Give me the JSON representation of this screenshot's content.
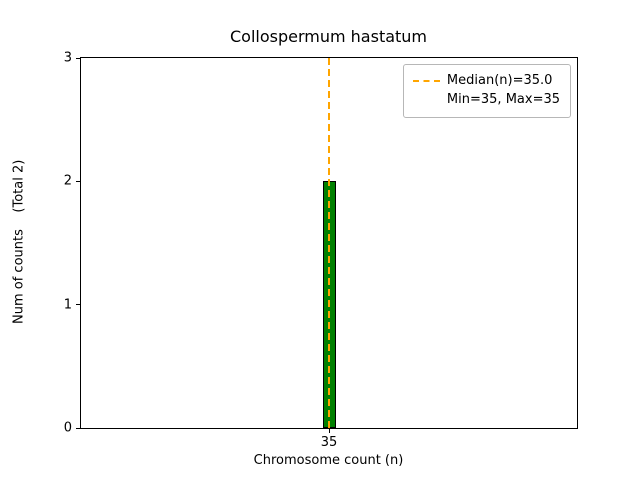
{
  "figure": {
    "title": "Collospermum hastatum",
    "xlabel": "Chromosome count (n)",
    "ylabel": "Num of counts    (Total 2)"
  },
  "chart_data": {
    "type": "bar",
    "title": "Collospermum hastatum",
    "xlabel": "Chromosome count (n)",
    "ylabel": "Num of counts    (Total 2)",
    "categories": [
      35
    ],
    "values": [
      2
    ],
    "total": 2,
    "median": 35.0,
    "min": 35,
    "max": 35,
    "ylim": [
      0,
      3
    ],
    "xlim": [
      34.5,
      35.5
    ],
    "yticks": [
      0,
      1,
      2,
      3
    ],
    "xticks": [
      35
    ],
    "grid": false,
    "legend_position": "upper right",
    "legend_entries": [
      "Median(n)=35.0",
      "Min=35, Max=35"
    ],
    "bar_color": "#008000",
    "bar_edge_color": "#000000",
    "median_line_color": "#ffa500"
  }
}
